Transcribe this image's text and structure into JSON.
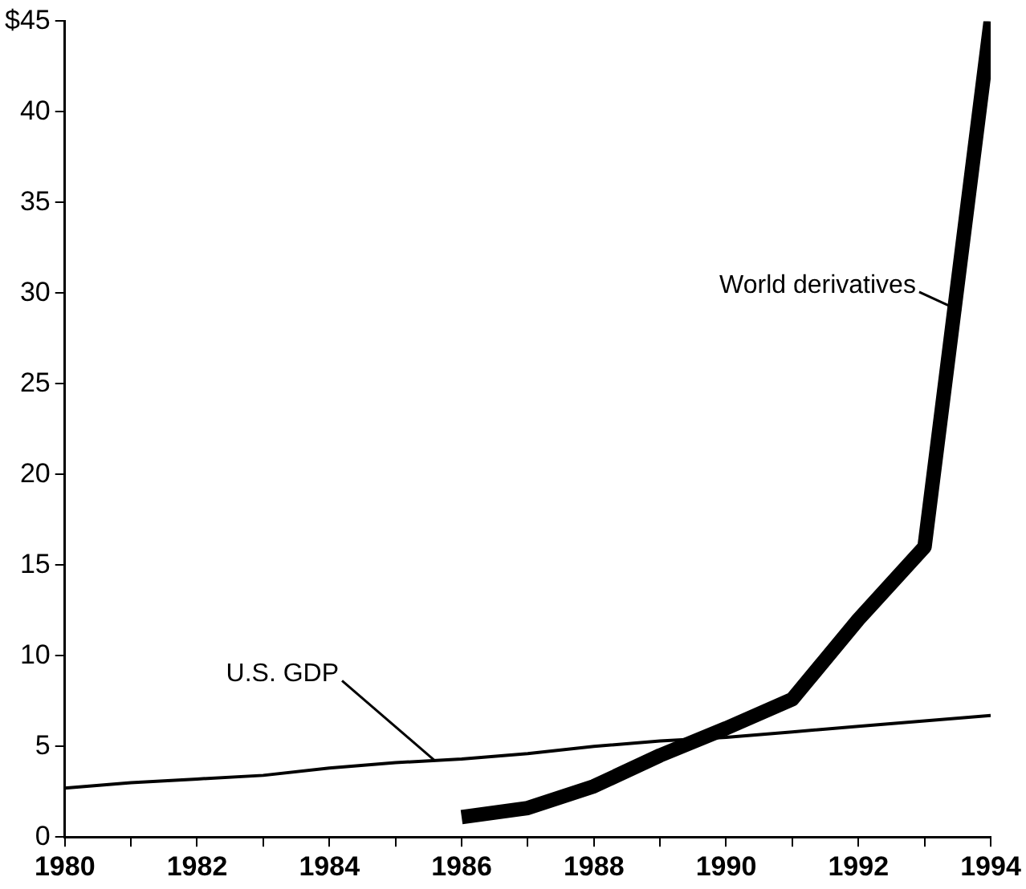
{
  "chart_data": {
    "type": "line",
    "x": [
      1980,
      1981,
      1982,
      1983,
      1984,
      1985,
      1986,
      1987,
      1988,
      1989,
      1990,
      1991,
      1992,
      1993,
      1994
    ],
    "series": [
      {
        "name": "U.S. GDP",
        "color": "#000000",
        "values": [
          2.7,
          3.0,
          3.2,
          3.4,
          3.8,
          4.1,
          4.3,
          4.6,
          5.0,
          5.3,
          5.5,
          5.8,
          6.1,
          6.4,
          6.7
        ]
      },
      {
        "name": "World derivatives",
        "color": "#000000",
        "x": [
          1986,
          1987,
          1988,
          1989,
          1990,
          1991,
          1992,
          1993,
          1994
        ],
        "values": [
          1.1,
          1.6,
          2.8,
          4.5,
          6.0,
          7.6,
          12,
          16,
          45
        ]
      }
    ],
    "xlim": [
      1980,
      1994
    ],
    "xticks": [
      1980,
      {
        "value": 1981,
        "label": null
      },
      1982,
      {
        "value": 1983,
        "label": null
      },
      1984,
      {
        "value": 1985,
        "label": null
      },
      1986,
      {
        "value": 1987,
        "label": null
      },
      1988,
      {
        "value": 1989,
        "label": null
      },
      1990,
      {
        "value": 1991,
        "label": null
      },
      1992,
      {
        "value": 1993,
        "label": null
      },
      1994
    ],
    "ylim": [
      0,
      45
    ],
    "yticks": [
      0,
      5,
      10,
      15,
      20,
      25,
      30,
      35,
      40,
      {
        "value": 45,
        "label": "$45"
      }
    ],
    "grid": false,
    "marker": "none",
    "line_style": "solid"
  }
}
